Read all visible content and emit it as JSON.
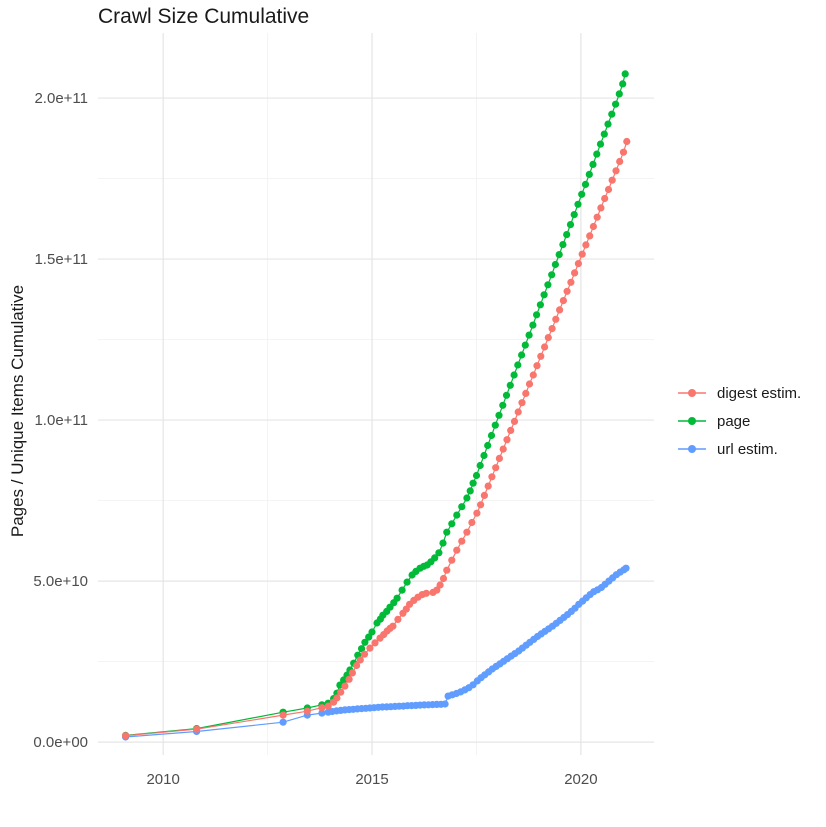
{
  "chart_data": {
    "type": "line",
    "title": "Crawl Size Cumulative",
    "xlabel": "",
    "ylabel": "Pages / Unique Items Cumulative",
    "value_unit": "items, stored in billions (1e9)",
    "x_unit": "year",
    "grid": true,
    "legend_position": "right",
    "xlim": [
      2008.44,
      2021.75
    ],
    "ylim": [
      -4,
      220.2
    ],
    "x_ticks": [
      {
        "value": 2010,
        "label": "2010"
      },
      {
        "value": 2015,
        "label": "2015"
      },
      {
        "value": 2020,
        "label": "2020"
      }
    ],
    "x_minor": [
      2012.5,
      2017.5
    ],
    "y_ticks": [
      {
        "value": 0,
        "label": "0.0e+00"
      },
      {
        "value": 50,
        "label": "5.0e+10"
      },
      {
        "value": 100,
        "label": "1.0e+11"
      },
      {
        "value": 150,
        "label": "1.5e+11"
      },
      {
        "value": 200,
        "label": "2.0e+11"
      }
    ],
    "y_minor": [
      25,
      75,
      125,
      175
    ],
    "series": [
      {
        "name": "digest estim.",
        "color": "#F8766D",
        "points": [
          [
            2009.1,
            2.0
          ],
          [
            2010.8,
            4.0
          ],
          [
            2012.87,
            8.4
          ],
          [
            2013.45,
            9.6
          ],
          [
            2013.8,
            10.7
          ],
          [
            2013.95,
            11.2
          ],
          [
            2014.08,
            12.4
          ],
          [
            2014.16,
            13.7
          ],
          [
            2014.25,
            15.5
          ],
          [
            2014.35,
            17.4
          ],
          [
            2014.45,
            19.5
          ],
          [
            2014.53,
            21.5
          ],
          [
            2014.63,
            23.8
          ],
          [
            2014.72,
            25.5
          ],
          [
            2014.82,
            27.3
          ],
          [
            2014.95,
            29.2
          ],
          [
            2015.07,
            30.8
          ],
          [
            2015.19,
            32.3
          ],
          [
            2015.28,
            33.4
          ],
          [
            2015.36,
            34.5
          ],
          [
            2015.43,
            35.3
          ],
          [
            2015.5,
            36.0
          ],
          [
            2015.62,
            38.1
          ],
          [
            2015.74,
            40.0
          ],
          [
            2015.82,
            41.3
          ],
          [
            2015.9,
            42.8
          ],
          [
            2016.0,
            44.0
          ],
          [
            2016.1,
            45.0
          ],
          [
            2016.2,
            45.8
          ],
          [
            2016.3,
            46.2
          ],
          [
            2016.46,
            46.5
          ],
          [
            2016.55,
            47.2
          ],
          [
            2016.63,
            48.8
          ],
          [
            2016.71,
            50.8
          ],
          [
            2016.79,
            53.4
          ],
          [
            2016.91,
            56.5
          ],
          [
            2017.03,
            59.6
          ],
          [
            2017.15,
            62.4
          ],
          [
            2017.27,
            65.2
          ],
          [
            2017.39,
            68.2
          ],
          [
            2017.51,
            71.1
          ],
          [
            2017.6,
            73.7
          ],
          [
            2017.69,
            76.6
          ],
          [
            2017.78,
            79.5
          ],
          [
            2017.87,
            82.4
          ],
          [
            2017.96,
            85.2
          ],
          [
            2018.05,
            88.1
          ],
          [
            2018.14,
            91.0
          ],
          [
            2018.23,
            93.9
          ],
          [
            2018.32,
            96.8
          ],
          [
            2018.41,
            99.6
          ],
          [
            2018.5,
            102.5
          ],
          [
            2018.59,
            105.4
          ],
          [
            2018.68,
            108.3
          ],
          [
            2018.77,
            111.2
          ],
          [
            2018.86,
            114.0
          ],
          [
            2018.95,
            116.9
          ],
          [
            2019.04,
            119.8
          ],
          [
            2019.13,
            122.7
          ],
          [
            2019.22,
            125.6
          ],
          [
            2019.31,
            128.4
          ],
          [
            2019.4,
            131.3
          ],
          [
            2019.49,
            134.2
          ],
          [
            2019.58,
            137.1
          ],
          [
            2019.67,
            140.0
          ],
          [
            2019.76,
            142.8
          ],
          [
            2019.85,
            145.7
          ],
          [
            2019.94,
            148.6
          ],
          [
            2020.03,
            151.5
          ],
          [
            2020.12,
            154.4
          ],
          [
            2020.21,
            157.2
          ],
          [
            2020.3,
            160.1
          ],
          [
            2020.39,
            163.0
          ],
          [
            2020.48,
            165.9
          ],
          [
            2020.57,
            168.8
          ],
          [
            2020.66,
            171.6
          ],
          [
            2020.75,
            174.5
          ],
          [
            2020.84,
            177.4
          ],
          [
            2020.93,
            180.3
          ],
          [
            2021.02,
            183.2
          ],
          [
            2021.1,
            186.5
          ]
        ]
      },
      {
        "name": "page",
        "color": "#00BA38",
        "points": [
          [
            2009.1,
            2.1
          ],
          [
            2010.8,
            4.2
          ],
          [
            2012.87,
            9.3
          ],
          [
            2013.45,
            10.6
          ],
          [
            2013.8,
            11.6
          ],
          [
            2013.95,
            12.1
          ],
          [
            2014.08,
            13.5
          ],
          [
            2014.16,
            15.2
          ],
          [
            2014.23,
            17.7
          ],
          [
            2014.32,
            19.3
          ],
          [
            2014.4,
            20.8
          ],
          [
            2014.47,
            22.4
          ],
          [
            2014.56,
            24.5
          ],
          [
            2014.66,
            27.0
          ],
          [
            2014.75,
            29.0
          ],
          [
            2014.83,
            31.0
          ],
          [
            2014.92,
            32.6
          ],
          [
            2015.0,
            34.2
          ],
          [
            2015.12,
            37.0
          ],
          [
            2015.2,
            38.2
          ],
          [
            2015.26,
            39.4
          ],
          [
            2015.35,
            40.6
          ],
          [
            2015.43,
            41.9
          ],
          [
            2015.52,
            43.3
          ],
          [
            2015.6,
            44.7
          ],
          [
            2015.72,
            47.2
          ],
          [
            2015.84,
            49.7
          ],
          [
            2015.96,
            51.9
          ],
          [
            2016.05,
            53.0
          ],
          [
            2016.15,
            54.0
          ],
          [
            2016.24,
            54.6
          ],
          [
            2016.32,
            55.0
          ],
          [
            2016.41,
            56.0
          ],
          [
            2016.5,
            57.2
          ],
          [
            2016.6,
            58.8
          ],
          [
            2016.7,
            61.8
          ],
          [
            2016.79,
            65.2
          ],
          [
            2016.91,
            67.8
          ],
          [
            2017.03,
            70.5
          ],
          [
            2017.15,
            73.1
          ],
          [
            2017.27,
            75.8
          ],
          [
            2017.35,
            78.0
          ],
          [
            2017.42,
            80.4
          ],
          [
            2017.5,
            82.8
          ],
          [
            2017.59,
            85.9
          ],
          [
            2017.68,
            89.0
          ],
          [
            2017.77,
            92.1
          ],
          [
            2017.86,
            95.2
          ],
          [
            2017.95,
            98.4
          ],
          [
            2018.04,
            101.5
          ],
          [
            2018.13,
            104.6
          ],
          [
            2018.22,
            107.7
          ],
          [
            2018.31,
            110.8
          ],
          [
            2018.4,
            114.0
          ],
          [
            2018.49,
            117.1
          ],
          [
            2018.58,
            120.2
          ],
          [
            2018.67,
            123.3
          ],
          [
            2018.76,
            126.4
          ],
          [
            2018.85,
            129.5
          ],
          [
            2018.94,
            132.7
          ],
          [
            2019.03,
            135.8
          ],
          [
            2019.12,
            138.9
          ],
          [
            2019.21,
            142.0
          ],
          [
            2019.3,
            145.1
          ],
          [
            2019.39,
            148.3
          ],
          [
            2019.48,
            151.4
          ],
          [
            2019.57,
            154.5
          ],
          [
            2019.66,
            157.6
          ],
          [
            2019.75,
            160.7
          ],
          [
            2019.84,
            163.8
          ],
          [
            2019.93,
            167.0
          ],
          [
            2020.02,
            170.1
          ],
          [
            2020.11,
            173.2
          ],
          [
            2020.2,
            176.3
          ],
          [
            2020.29,
            179.4
          ],
          [
            2020.38,
            182.6
          ],
          [
            2020.47,
            185.7
          ],
          [
            2020.56,
            188.8
          ],
          [
            2020.65,
            191.9
          ],
          [
            2020.74,
            195.0
          ],
          [
            2020.83,
            198.1
          ],
          [
            2020.92,
            201.3
          ],
          [
            2021.0,
            204.4
          ],
          [
            2021.06,
            207.5
          ]
        ]
      },
      {
        "name": "url estim.",
        "color": "#619CFF",
        "points": [
          [
            2009.1,
            1.6
          ],
          [
            2010.8,
            3.3
          ],
          [
            2012.87,
            6.2
          ],
          [
            2013.45,
            8.4
          ],
          [
            2013.8,
            9.0
          ],
          [
            2013.95,
            9.3
          ],
          [
            2014.05,
            9.5
          ],
          [
            2014.15,
            9.7
          ],
          [
            2014.25,
            9.85
          ],
          [
            2014.35,
            10.0
          ],
          [
            2014.45,
            10.1
          ],
          [
            2014.55,
            10.2
          ],
          [
            2014.65,
            10.3
          ],
          [
            2014.75,
            10.4
          ],
          [
            2014.85,
            10.5
          ],
          [
            2014.95,
            10.6
          ],
          [
            2015.05,
            10.7
          ],
          [
            2015.15,
            10.8
          ],
          [
            2015.25,
            10.9
          ],
          [
            2015.35,
            10.95
          ],
          [
            2015.45,
            11.0
          ],
          [
            2015.55,
            11.1
          ],
          [
            2015.65,
            11.15
          ],
          [
            2015.75,
            11.2
          ],
          [
            2015.85,
            11.3
          ],
          [
            2015.95,
            11.35
          ],
          [
            2016.05,
            11.4
          ],
          [
            2016.15,
            11.5
          ],
          [
            2016.25,
            11.55
          ],
          [
            2016.35,
            11.6
          ],
          [
            2016.45,
            11.65
          ],
          [
            2016.55,
            11.7
          ],
          [
            2016.65,
            11.75
          ],
          [
            2016.75,
            11.85
          ],
          [
            2016.82,
            14.3
          ],
          [
            2016.92,
            14.7
          ],
          [
            2017.02,
            15.1
          ],
          [
            2017.12,
            15.6
          ],
          [
            2017.22,
            16.2
          ],
          [
            2017.32,
            16.9
          ],
          [
            2017.42,
            17.8
          ],
          [
            2017.52,
            19.0
          ],
          [
            2017.61,
            20.0
          ],
          [
            2017.7,
            20.9
          ],
          [
            2017.79,
            21.8
          ],
          [
            2017.88,
            22.7
          ],
          [
            2017.97,
            23.5
          ],
          [
            2018.06,
            24.3
          ],
          [
            2018.15,
            25.1
          ],
          [
            2018.24,
            25.9
          ],
          [
            2018.33,
            26.7
          ],
          [
            2018.42,
            27.5
          ],
          [
            2018.51,
            28.3
          ],
          [
            2018.6,
            29.2
          ],
          [
            2018.69,
            30.1
          ],
          [
            2018.78,
            31.0
          ],
          [
            2018.87,
            31.9
          ],
          [
            2018.96,
            32.8
          ],
          [
            2019.05,
            33.6
          ],
          [
            2019.14,
            34.4
          ],
          [
            2019.23,
            35.2
          ],
          [
            2019.32,
            36.0
          ],
          [
            2019.41,
            36.9
          ],
          [
            2019.5,
            37.8
          ],
          [
            2019.59,
            38.7
          ],
          [
            2019.68,
            39.6
          ],
          [
            2019.77,
            40.6
          ],
          [
            2019.86,
            41.6
          ],
          [
            2019.95,
            42.8
          ],
          [
            2020.04,
            43.8
          ],
          [
            2020.13,
            44.8
          ],
          [
            2020.22,
            45.8
          ],
          [
            2020.31,
            46.7
          ],
          [
            2020.4,
            47.3
          ],
          [
            2020.49,
            48.0
          ],
          [
            2020.58,
            49.0
          ],
          [
            2020.67,
            50.0
          ],
          [
            2020.76,
            51.0
          ],
          [
            2020.85,
            52.0
          ],
          [
            2020.94,
            52.8
          ],
          [
            2021.03,
            53.5
          ],
          [
            2021.08,
            54.0
          ]
        ]
      }
    ]
  }
}
